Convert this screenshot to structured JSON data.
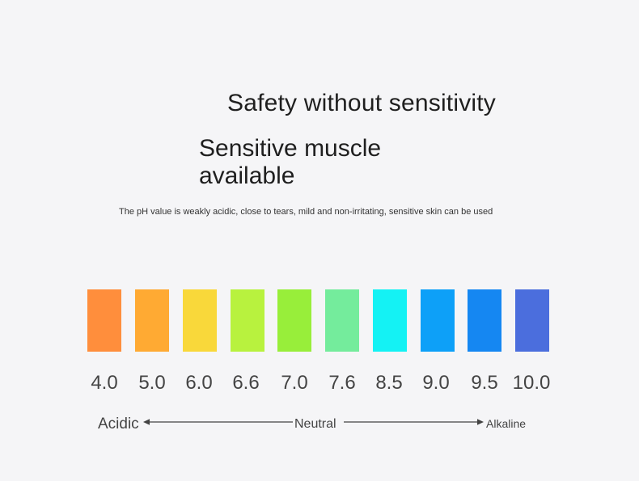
{
  "title": "Safety without sensitivity",
  "subtitle": "Sensitive muscle available",
  "description": "The pH value is weakly acidic, close to tears, mild and non-irritating, sensitive skin can be used",
  "scale": [
    {
      "value": "4.0",
      "color": "#FF8E3C"
    },
    {
      "value": "5.0",
      "color": "#FFAA33"
    },
    {
      "value": "6.0",
      "color": "#F9D83A"
    },
    {
      "value": "6.6",
      "color": "#B8F23E"
    },
    {
      "value": "7.0",
      "color": "#98EE3A"
    },
    {
      "value": "7.6",
      "color": "#74EC9C"
    },
    {
      "value": "8.5",
      "color": "#14F2F4"
    },
    {
      "value": "9.0",
      "color": "#0DA0F8"
    },
    {
      "value": "9.5",
      "color": "#1587F2"
    },
    {
      "value": "10.0",
      "color": "#4B6EDD"
    }
  ],
  "labels": {
    "acidic": "Acidic",
    "neutral": "Neutral",
    "alkaline": "Alkaline"
  }
}
